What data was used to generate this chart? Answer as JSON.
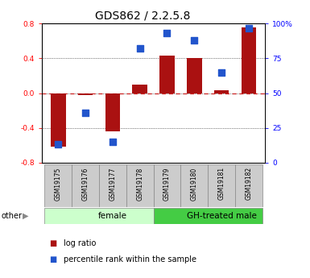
{
  "title": "GDS862 / 2.2.5.8",
  "samples": [
    "GSM19175",
    "GSM19176",
    "GSM19177",
    "GSM19178",
    "GSM19179",
    "GSM19180",
    "GSM19181",
    "GSM19182"
  ],
  "log_ratio": [
    -0.62,
    -0.02,
    -0.44,
    0.1,
    0.43,
    0.4,
    0.03,
    0.76
  ],
  "percentile": [
    13,
    36,
    15,
    82,
    93,
    88,
    65,
    97
  ],
  "groups": [
    {
      "label": "female",
      "start": 0,
      "end": 4,
      "color": "#ccffcc"
    },
    {
      "label": "GH-treated male",
      "start": 4,
      "end": 8,
      "color": "#44cc44"
    }
  ],
  "ylim_left": [
    -0.8,
    0.8
  ],
  "ylim_right": [
    0,
    100
  ],
  "bar_color": "#aa1111",
  "dot_color": "#2255cc",
  "bar_width": 0.55,
  "dot_size": 28,
  "zero_line_color": "#cc2222",
  "grid_color": "#111111",
  "left_yticks": [
    -0.8,
    -0.4,
    0.0,
    0.4,
    0.8
  ],
  "right_yticks": [
    0,
    25,
    50,
    75,
    100
  ],
  "legend_items": [
    {
      "label": "log ratio",
      "color": "#aa1111"
    },
    {
      "label": "percentile rank within the sample",
      "color": "#2255cc"
    }
  ],
  "other_label": "other",
  "tick_label_size": 6.5,
  "title_size": 10
}
